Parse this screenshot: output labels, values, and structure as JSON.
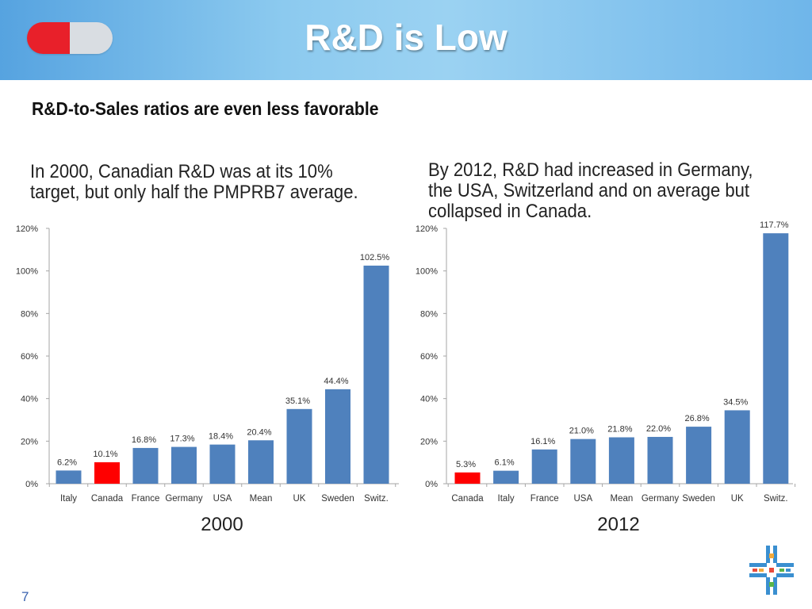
{
  "header": {
    "title": "R&D is Low",
    "pill_colors": {
      "left": "#e8202a",
      "right": "#d9dde2"
    }
  },
  "subtitle": "R&D-to-Sales ratios are even less favorable",
  "captions": {
    "left": "In 2000, Canadian R&D was at its 10% target, but only half the PMPRB7 average.",
    "right": "By 2012, R&D had increased in Germany, the USA, Switzerland and on average but collapsed in Canada."
  },
  "colors": {
    "bar": "#4f81bd",
    "highlight": "#ff0000",
    "axis": "#a6a6a6"
  },
  "chart_data": [
    {
      "type": "bar",
      "title": "2000",
      "categories": [
        "Italy",
        "Canada",
        "France",
        "Germany",
        "USA",
        "Mean",
        "UK",
        "Sweden",
        "Switz."
      ],
      "values": [
        6.2,
        10.1,
        16.8,
        17.3,
        18.4,
        20.4,
        35.1,
        44.4,
        102.5
      ],
      "labels": [
        "6.2%",
        "10.1%",
        "16.8%",
        "17.3%",
        "18.4%",
        "20.4%",
        "35.1%",
        "44.4%",
        "102.5%"
      ],
      "highlight": "Canada",
      "ylim": [
        0,
        120
      ],
      "yticks": [
        "0%",
        "20%",
        "40%",
        "60%",
        "80%",
        "100%",
        "120%"
      ],
      "xlabel": "",
      "ylabel": ""
    },
    {
      "type": "bar",
      "title": "2012",
      "categories": [
        "Canada",
        "Italy",
        "France",
        "USA",
        "Mean",
        "Germany",
        "Sweden",
        "UK",
        "Switz."
      ],
      "values": [
        5.3,
        6.1,
        16.1,
        21.0,
        21.8,
        22.0,
        26.8,
        34.5,
        117.7
      ],
      "labels": [
        "5.3%",
        "6.1%",
        "16.1%",
        "21.0%",
        "21.8%",
        "22.0%",
        "26.8%",
        "34.5%",
        "117.7%"
      ],
      "highlight": "Canada",
      "ylim": [
        0,
        120
      ],
      "yticks": [
        "0%",
        "20%",
        "40%",
        "60%",
        "80%",
        "100%",
        "120%"
      ],
      "xlabel": "",
      "ylabel": ""
    }
  ],
  "year_labels": [
    "2000",
    "2012"
  ],
  "page_number": "7",
  "logo": {
    "name": "plus-cross-logo"
  }
}
